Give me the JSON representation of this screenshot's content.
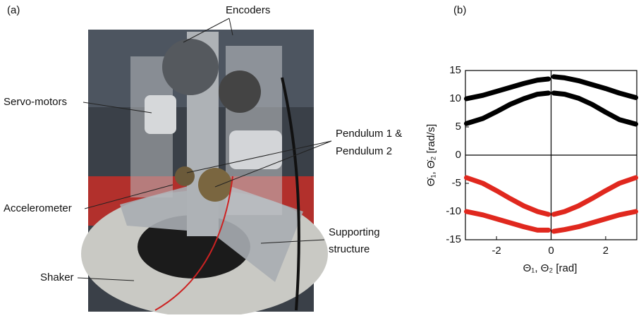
{
  "panel_a": {
    "label": "(a)",
    "annotations": {
      "encoders": "Encoders",
      "servo_motors": "Servo-motors",
      "pendulums": [
        "Pendulum 1 &",
        "Pendulum 2"
      ],
      "accelerometer": "Accelerometer",
      "supporting_structure": [
        "Supporting",
        "structure"
      ],
      "shaker": "Shaker"
    }
  },
  "chart_data": {
    "type": "line",
    "label": "(b)",
    "xlabel": "Θ₁, Θ₂ [rad]",
    "ylabel": "Θ̇₁, Θ̇₂ [rad/s]",
    "x": [
      -3.1,
      -2.5,
      -2,
      -1.5,
      -1,
      -0.5,
      -0.1,
      0,
      0.1,
      0.5,
      1,
      1.5,
      2,
      2.5,
      3.1
    ],
    "series": [
      {
        "color": "#000000",
        "values": [
          10,
          10.6,
          11.3,
          12,
          12.7,
          13.3,
          13.5,
          null,
          13.9,
          13.7,
          13.2,
          12.5,
          11.8,
          11,
          10.2
        ]
      },
      {
        "color": "#000000",
        "values": [
          5.6,
          6.5,
          7.7,
          9,
          10,
          10.8,
          11,
          null,
          11,
          10.8,
          10.1,
          9,
          7.6,
          6.3,
          5.5
        ]
      },
      {
        "color": "#e0281e",
        "values": [
          -4,
          -5,
          -6.3,
          -7.7,
          -9,
          -10,
          -10.5,
          null,
          -10.5,
          -10,
          -9,
          -7.7,
          -6.3,
          -5,
          -4
        ]
      },
      {
        "color": "#e0281e",
        "values": [
          -10,
          -10.6,
          -11.3,
          -12,
          -12.7,
          -13.3,
          -13.3,
          null,
          -13.5,
          -13.2,
          -12.7,
          -12,
          -11.3,
          -10.6,
          -10
        ]
      }
    ],
    "xlim": [
      -3.14,
      3.14
    ],
    "ylim": [
      -15,
      15
    ],
    "xticks": [
      -2,
      0,
      2
    ],
    "yticks": [
      -15,
      -10,
      -5,
      0,
      5,
      10,
      15
    ]
  }
}
